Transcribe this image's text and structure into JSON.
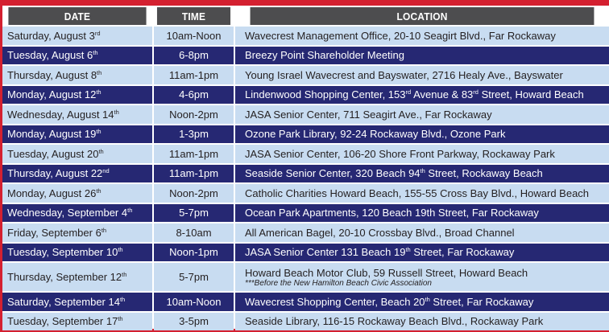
{
  "headers": {
    "date": "DATE",
    "time": "TIME",
    "location": "LOCATION"
  },
  "colors": {
    "border": "#d42030",
    "header": "#4d4d4f",
    "light_row": "#c8dcf1",
    "dark_row": "#262873"
  },
  "rows": [
    {
      "date": "Saturday, August 3",
      "date_sup": "rd",
      "time": "10am-Noon",
      "location": [
        "Wavecrest Management Office, 20-10 Seagirt Blvd., Far Rockaway"
      ]
    },
    {
      "date": "Tuesday, August 6",
      "date_sup": "th",
      "time": "6-8pm",
      "location": [
        "Breezy Point Shareholder Meeting"
      ]
    },
    {
      "date": "Thursday, August 8",
      "date_sup": "th",
      "time": "11am-1pm",
      "location": [
        "Young Israel Wavecrest and Bayswater, 2716 Healy Ave., Bayswater"
      ]
    },
    {
      "date": "Monday, August 12",
      "date_sup": "th",
      "time": "4-6pm",
      "location": [
        "Lindenwood Shopping Center, 153",
        "rd",
        " Avenue & 83",
        "rd",
        " Street, Howard Beach"
      ]
    },
    {
      "date": "Wednesday, August 14",
      "date_sup": "th",
      "time": "Noon-2pm",
      "location": [
        "JASA Senior Center, 711 Seagirt Ave., Far Rockaway"
      ]
    },
    {
      "date": "Monday, August 19",
      "date_sup": "th",
      "time": "1-3pm",
      "location": [
        "Ozone Park Library, 92-24 Rockaway Blvd., Ozone Park"
      ]
    },
    {
      "date": "Tuesday, August 20",
      "date_sup": "th",
      "time": "11am-1pm",
      "location": [
        "JASA Senior Center, 106-20 Shore Front Parkway, Rockaway Park"
      ]
    },
    {
      "date": "Thursday, August 22",
      "date_sup": "nd",
      "time": "11am-1pm",
      "location": [
        "Seaside Senior Center, 320 Beach 94",
        "th",
        " Street, Rockaway Beach"
      ]
    },
    {
      "date": "Monday, August 26",
      "date_sup": "th",
      "time": "Noon-2pm",
      "location": [
        "Catholic Charities Howard Beach, 155-55 Cross Bay Blvd., Howard Beach"
      ]
    },
    {
      "date": "Wednesday, September 4",
      "date_sup": "th",
      "time": "5-7pm",
      "location": [
        "Ocean Park Apartments, 120 Beach 19th Street, Far Rockaway"
      ]
    },
    {
      "date": "Friday, September 6",
      "date_sup": "th",
      "time": "8-10am",
      "location": [
        "All American Bagel, 20-10 Crossbay Blvd., Broad Channel"
      ]
    },
    {
      "date": "Tuesday, September 10",
      "date_sup": "th",
      "time": "Noon-1pm",
      "location": [
        "JASA Senior Center 131 Beach 19",
        "th",
        " Street, Far Rockaway"
      ]
    },
    {
      "date": "Thursday, September 12",
      "date_sup": "th",
      "time": "5-7pm",
      "location": [
        "Howard Beach Motor Club, 59 Russell Street, Howard Beach"
      ],
      "note": "***Before the New Hamilton Beach Civic Association"
    },
    {
      "date": "Saturday, September 14",
      "date_sup": "th",
      "time": "10am-Noon",
      "location": [
        "Wavecrest Shopping Center, Beach 20",
        "th",
        " Street, Far Rockaway"
      ]
    },
    {
      "date": "Tuesday, September 17",
      "date_sup": "th",
      "time": "3-5pm",
      "location": [
        "Seaside Library, 116-15 Rockaway Beach Blvd., Rockaway Park"
      ]
    }
  ]
}
